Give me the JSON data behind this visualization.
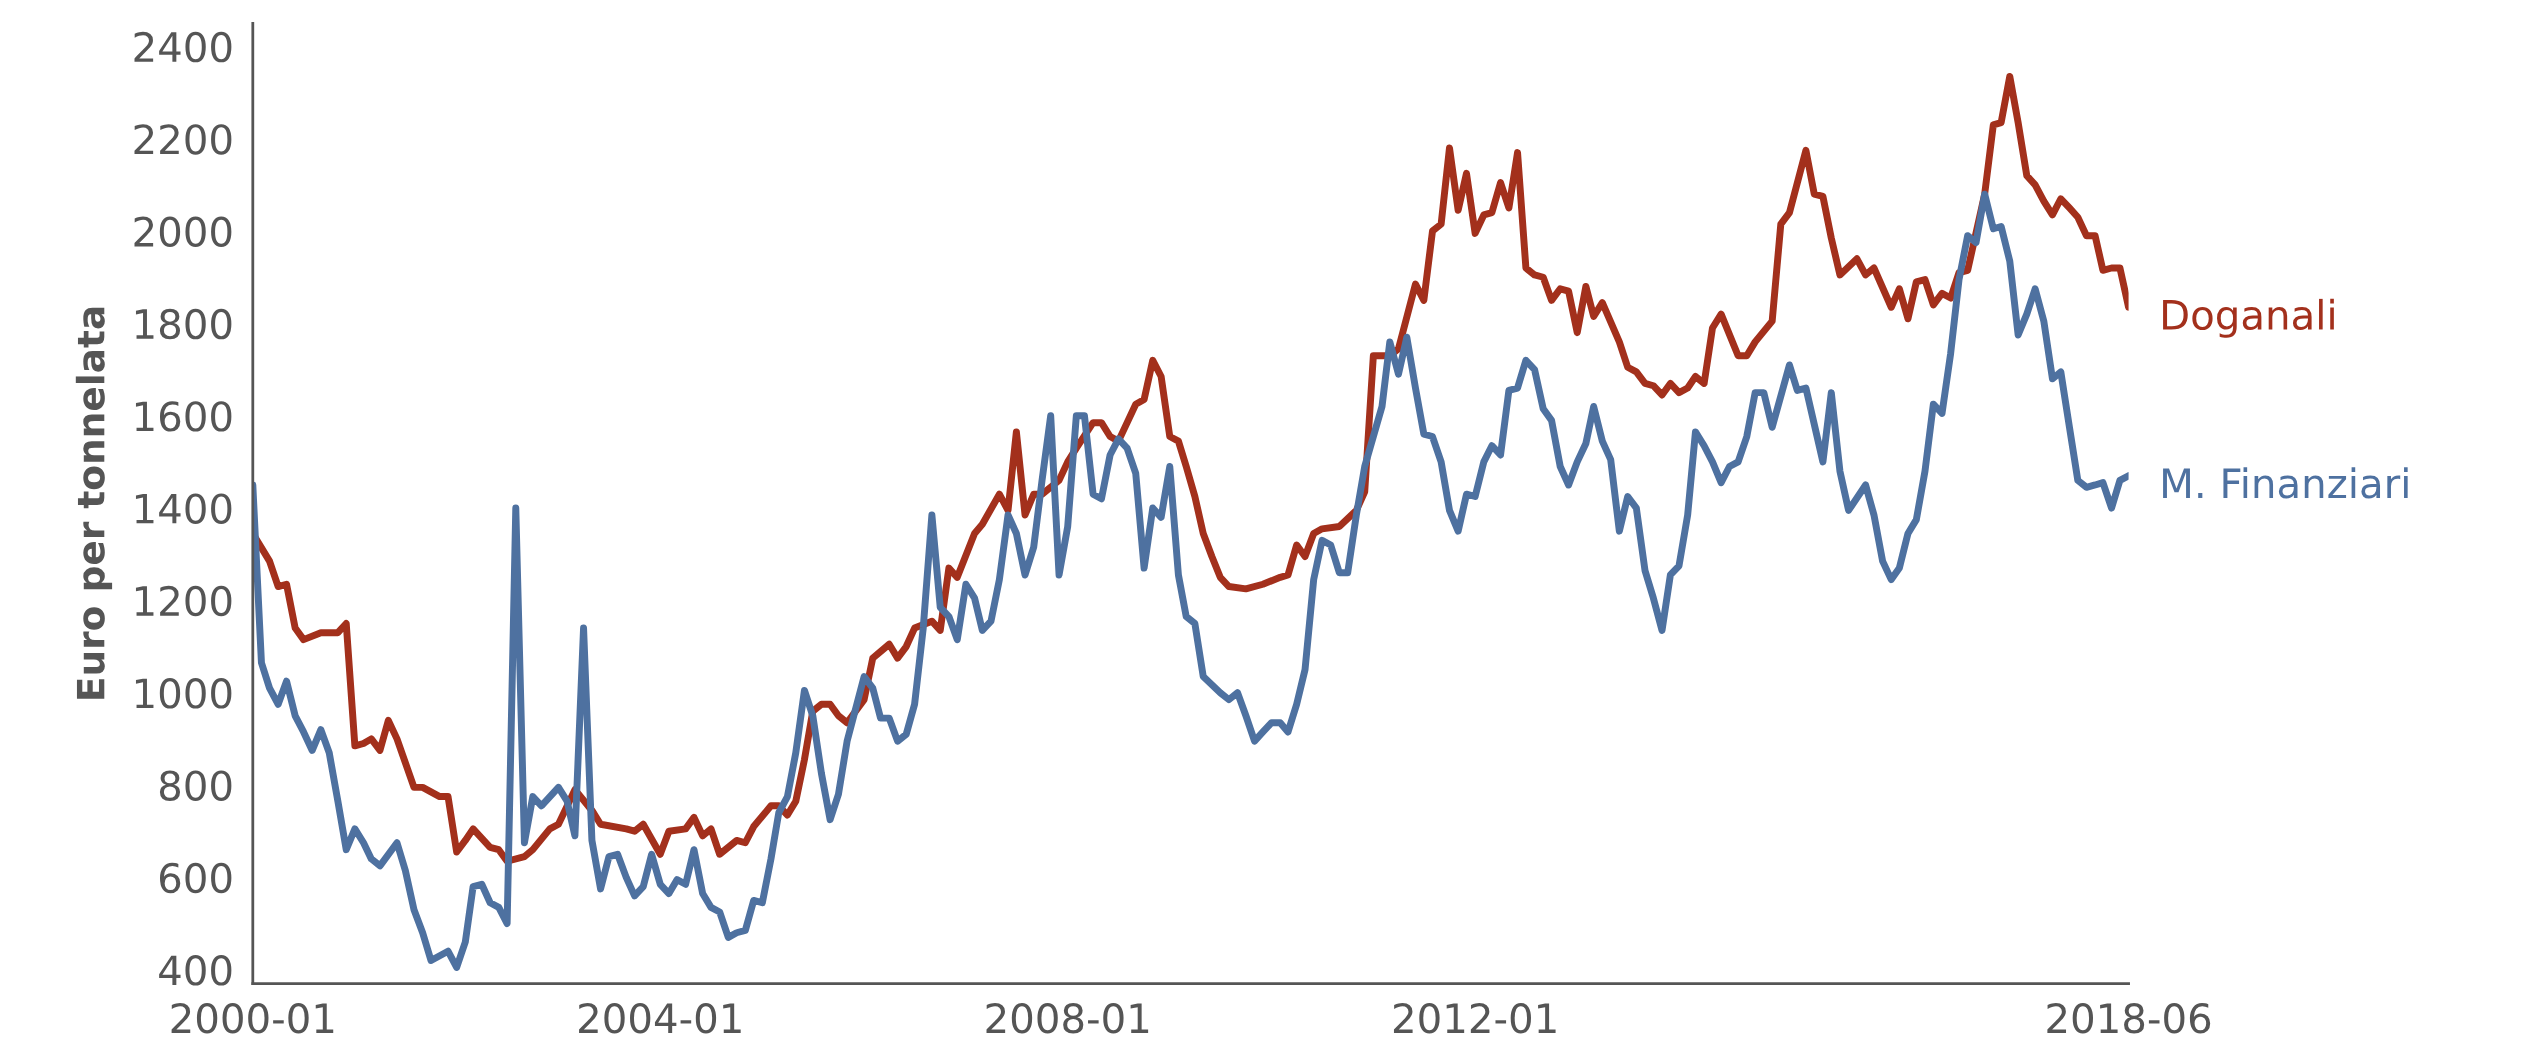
{
  "chart_data": {
    "type": "line",
    "ylabel": "Euro per tonnelata",
    "xlim": [
      "2000-01",
      "2018-06"
    ],
    "xticks": [
      "2000-01",
      "2004-01",
      "2008-01",
      "2012-01",
      "2018-06"
    ],
    "ylim": [
      370,
      2450
    ],
    "yticks": [
      400,
      600,
      800,
      1000,
      1200,
      1400,
      1600,
      1800,
      2000,
      2200,
      2400
    ],
    "grid": false,
    "legend": false,
    "marker": "none",
    "line_style": "solid",
    "series": [
      {
        "name": "Doganali",
        "color": "#a3301c",
        "x": [
          "2000-01",
          "2000-03",
          "2000-04",
          "2000-05",
          "2000-06",
          "2000-07",
          "2000-09",
          "2000-11",
          "2000-12",
          "2001-01",
          "2001-02",
          "2001-03",
          "2001-04",
          "2001-05",
          "2001-06",
          "2001-08",
          "2001-09",
          "2001-11",
          "2001-12",
          "2002-01",
          "2002-02",
          "2002-03",
          "2002-05",
          "2002-06",
          "2002-07",
          "2002-09",
          "2002-10",
          "2002-12",
          "2003-01",
          "2003-03",
          "2003-05",
          "2003-06",
          "2003-09",
          "2003-10",
          "2003-11",
          "2004-01",
          "2004-02",
          "2004-04",
          "2004-05",
          "2004-06",
          "2004-07",
          "2004-08",
          "2004-10",
          "2004-11",
          "2004-12",
          "2005-02",
          "2005-03",
          "2005-04",
          "2005-05",
          "2005-06",
          "2005-07",
          "2005-08",
          "2005-09",
          "2005-10",
          "2005-11",
          "2006-01",
          "2006-02",
          "2006-04",
          "2006-05",
          "2006-06",
          "2006-07",
          "2006-09",
          "2006-10",
          "2006-11",
          "2006-12",
          "2007-02",
          "2007-03",
          "2007-05",
          "2007-06",
          "2007-07",
          "2007-08",
          "2007-09",
          "2007-10",
          "2007-12",
          "2008-01",
          "2008-02",
          "2008-04",
          "2008-05",
          "2008-06",
          "2008-07",
          "2008-09",
          "2008-10",
          "2008-11",
          "2008-12",
          "2009-01",
          "2009-02",
          "2009-03",
          "2009-04",
          "2009-05",
          "2009-06",
          "2009-07",
          "2009-08",
          "2009-10",
          "2009-12",
          "2010-02",
          "2010-03",
          "2010-04",
          "2010-05",
          "2010-06",
          "2010-07",
          "2010-09",
          "2010-11",
          "2010-12",
          "2011-01",
          "2011-03",
          "2011-04",
          "2011-06",
          "2011-07",
          "2011-08",
          "2011-09",
          "2011-10",
          "2011-11",
          "2011-12",
          "2012-01",
          "2012-02",
          "2012-03",
          "2012-04",
          "2012-05",
          "2012-06",
          "2012-07",
          "2012-08",
          "2012-09",
          "2012-10",
          "2012-11",
          "2012-12",
          "2013-01",
          "2013-02",
          "2013-03",
          "2013-04",
          "2013-06",
          "2013-07",
          "2013-08",
          "2013-09",
          "2013-10",
          "2013-11",
          "2013-12",
          "2014-01",
          "2014-02",
          "2014-03",
          "2014-04",
          "2014-05",
          "2014-06",
          "2014-08",
          "2014-09",
          "2014-10",
          "2014-12",
          "2015-01",
          "2015-02",
          "2015-04",
          "2015-05",
          "2015-06",
          "2015-07",
          "2015-08",
          "2015-10",
          "2015-11",
          "2015-12",
          "2016-02",
          "2016-03",
          "2016-04",
          "2016-05",
          "2016-06",
          "2016-07",
          "2016-08",
          "2016-09",
          "2016-10",
          "2016-11",
          "2017-01",
          "2017-02",
          "2017-03",
          "2017-04",
          "2017-05",
          "2017-06",
          "2017-07",
          "2017-08",
          "2017-09",
          "2017-10",
          "2017-11",
          "2017-12",
          "2018-01",
          "2018-02",
          "2018-03",
          "2018-04",
          "2018-05",
          "2018-06"
        ],
        "values": [
          1345,
          1285,
          1230,
          1235,
          1140,
          1115,
          1130,
          1130,
          1150,
          885,
          890,
          900,
          875,
          940,
          900,
          795,
          795,
          775,
          775,
          655,
          680,
          705,
          665,
          660,
          635,
          645,
          660,
          705,
          715,
          790,
          745,
          715,
          705,
          700,
          715,
          650,
          700,
          705,
          730,
          690,
          705,
          650,
          680,
          675,
          710,
          755,
          755,
          735,
          765,
          855,
          960,
          975,
          975,
          950,
          935,
          985,
          1075,
          1105,
          1075,
          1100,
          1140,
          1155,
          1135,
          1270,
          1250,
          1345,
          1365,
          1430,
          1395,
          1565,
          1385,
          1430,
          1430,
          1460,
          1500,
          1530,
          1585,
          1585,
          1555,
          1545,
          1625,
          1635,
          1720,
          1685,
          1555,
          1545,
          1490,
          1425,
          1345,
          1295,
          1250,
          1230,
          1225,
          1235,
          1250,
          1255,
          1320,
          1295,
          1345,
          1355,
          1360,
          1395,
          1435,
          1730,
          1730,
          1745,
          1885,
          1850,
          2000,
          2015,
          2180,
          2045,
          2125,
          1995,
          2035,
          2040,
          2105,
          2050,
          2170,
          1920,
          1905,
          1900,
          1850,
          1875,
          1870,
          1780,
          1880,
          1815,
          1845,
          1760,
          1705,
          1695,
          1670,
          1665,
          1645,
          1670,
          1650,
          1660,
          1685,
          1670,
          1790,
          1820,
          1730,
          1730,
          1760,
          1805,
          2015,
          2040,
          2175,
          2080,
          2075,
          1985,
          1905,
          1940,
          1905,
          1920,
          1835,
          1875,
          1810,
          1890,
          1895,
          1840,
          1865,
          1855,
          1910,
          1915,
          2080,
          2230,
          2235,
          2335,
          2235,
          2120,
          2100,
          2065,
          2035,
          2070,
          2050,
          2030,
          1990,
          1990,
          1915,
          1920,
          1920,
          1835
        ]
      },
      {
        "name": "M. Finanziari",
        "color": "#4e71a0",
        "x": [
          "2000-01",
          "2000-02",
          "2000-03",
          "2000-04",
          "2000-05",
          "2000-06",
          "2000-07",
          "2000-08",
          "2000-09",
          "2000-10",
          "2000-11",
          "2000-12",
          "2001-01",
          "2001-02",
          "2001-03",
          "2001-04",
          "2001-06",
          "2001-07",
          "2001-08",
          "2001-09",
          "2001-10",
          "2001-12",
          "2002-01",
          "2002-02",
          "2002-03",
          "2002-04",
          "2002-05",
          "2002-06",
          "2002-07",
          "2002-08",
          "2002-09",
          "2002-10",
          "2002-11",
          "2003-01",
          "2003-02",
          "2003-03",
          "2003-04",
          "2003-05",
          "2003-06",
          "2003-07",
          "2003-08",
          "2003-09",
          "2003-10",
          "2003-11",
          "2003-12",
          "2004-01",
          "2004-02",
          "2004-03",
          "2004-04",
          "2004-05",
          "2004-06",
          "2004-07",
          "2004-08",
          "2004-09",
          "2004-10",
          "2004-11",
          "2004-12",
          "2005-01",
          "2005-02",
          "2005-03",
          "2005-04",
          "2005-05",
          "2005-06",
          "2005-07",
          "2005-08",
          "2005-09",
          "2005-10",
          "2005-11",
          "2006-01",
          "2006-02",
          "2006-03",
          "2006-04",
          "2006-05",
          "2006-06",
          "2006-07",
          "2006-08",
          "2006-09",
          "2006-10",
          "2006-11",
          "2006-12",
          "2007-01",
          "2007-02",
          "2007-03",
          "2007-04",
          "2007-05",
          "2007-06",
          "2007-07",
          "2007-08",
          "2007-09",
          "2007-10",
          "2007-11",
          "2007-12",
          "2008-01",
          "2008-02",
          "2008-03",
          "2008-04",
          "2008-05",
          "2008-06",
          "2008-07",
          "2008-08",
          "2008-09",
          "2008-10",
          "2008-11",
          "2008-12",
          "2009-01",
          "2009-02",
          "2009-03",
          "2009-04",
          "2009-05",
          "2009-07",
          "2009-08",
          "2009-09",
          "2009-10",
          "2009-11",
          "2009-12",
          "2010-01",
          "2010-02",
          "2010-03",
          "2010-04",
          "2010-05",
          "2010-06",
          "2010-07",
          "2010-08",
          "2010-09",
          "2010-10",
          "2010-11",
          "2010-12",
          "2011-02",
          "2011-03",
          "2011-04",
          "2011-05",
          "2011-06",
          "2011-07",
          "2011-08",
          "2011-09",
          "2011-10",
          "2011-11",
          "2011-12",
          "2012-01",
          "2012-02",
          "2012-03",
          "2012-04",
          "2012-05",
          "2012-06",
          "2012-07",
          "2012-08",
          "2012-09",
          "2012-10",
          "2012-11",
          "2012-12",
          "2013-01",
          "2013-02",
          "2013-03",
          "2013-04",
          "2013-05",
          "2013-06",
          "2013-07",
          "2013-08",
          "2013-09",
          "2013-10",
          "2013-11",
          "2013-12",
          "2014-01",
          "2014-02",
          "2014-03",
          "2014-04",
          "2014-05",
          "2014-06",
          "2014-07",
          "2014-08",
          "2014-09",
          "2014-10",
          "2014-11",
          "2014-12",
          "2015-02",
          "2015-03",
          "2015-04",
          "2015-06",
          "2015-07",
          "2015-08",
          "2015-09",
          "2015-11",
          "2015-12",
          "2016-01",
          "2016-02",
          "2016-03",
          "2016-04",
          "2016-05",
          "2016-06",
          "2016-07",
          "2016-08",
          "2016-09",
          "2016-10",
          "2016-11",
          "2016-12",
          "2017-01",
          "2017-02",
          "2017-03",
          "2017-04",
          "2017-05",
          "2017-06",
          "2017-07",
          "2017-08",
          "2017-09",
          "2017-10",
          "2017-11",
          "2017-12",
          "2018-01",
          "2018-02",
          "2018-03",
          "2018-04",
          "2018-05",
          "2018-06"
        ],
        "values": [
          1450,
          1065,
          1010,
          975,
          1025,
          950,
          915,
          875,
          920,
          870,
          765,
          660,
          705,
          675,
          640,
          625,
          675,
          615,
          530,
          480,
          420,
          440,
          405,
          460,
          580,
          585,
          545,
          535,
          500,
          1400,
          675,
          775,
          755,
          795,
          765,
          690,
          1140,
          680,
          575,
          645,
          650,
          600,
          560,
          580,
          650,
          585,
          565,
          595,
          585,
          660,
          565,
          535,
          525,
          470,
          480,
          485,
          550,
          545,
          640,
          740,
          775,
          870,
          1005,
          950,
          825,
          725,
          780,
          895,
          1035,
          1010,
          945,
          945,
          895,
          910,
          975,
          1140,
          1385,
          1185,
          1165,
          1115,
          1235,
          1205,
          1135,
          1155,
          1245,
          1385,
          1345,
          1255,
          1315,
          1460,
          1600,
          1255,
          1360,
          1600,
          1600,
          1430,
          1420,
          1515,
          1550,
          1530,
          1475,
          1270,
          1400,
          1380,
          1490,
          1255,
          1165,
          1150,
          1035,
          1000,
          985,
          1000,
          950,
          895,
          915,
          935,
          935,
          915,
          975,
          1050,
          1245,
          1330,
          1320,
          1260,
          1260,
          1385,
          1490,
          1620,
          1760,
          1690,
          1770,
          1660,
          1560,
          1555,
          1500,
          1395,
          1350,
          1430,
          1425,
          1500,
          1535,
          1515,
          1655,
          1660,
          1720,
          1700,
          1615,
          1590,
          1490,
          1450,
          1500,
          1540,
          1620,
          1545,
          1505,
          1350,
          1425,
          1400,
          1265,
          1205,
          1135,
          1255,
          1275,
          1385,
          1565,
          1535,
          1500,
          1455,
          1490,
          1500,
          1555,
          1650,
          1650,
          1575,
          1710,
          1655,
          1660,
          1500,
          1650,
          1480,
          1395,
          1450,
          1385,
          1285,
          1245,
          1270,
          1345,
          1375,
          1480,
          1625,
          1605,
          1735,
          1895,
          1990,
          1975,
          2080,
          2005,
          2010,
          1935,
          1775,
          1820,
          1875,
          1805,
          1680,
          1695,
          1575,
          1460,
          1445,
          1450,
          1455,
          1400,
          1460,
          1470
        ]
      }
    ]
  }
}
